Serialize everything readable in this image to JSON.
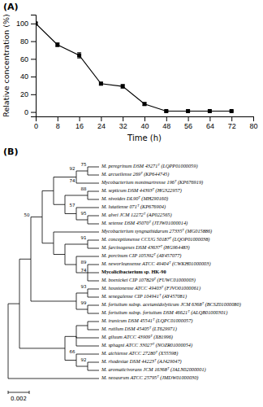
{
  "chart_data": [
    {
      "type": "line",
      "title": "(A)",
      "x": [
        0,
        8,
        16,
        24,
        32,
        40,
        48,
        56,
        64,
        72
      ],
      "values": [
        100,
        76,
        64,
        32,
        29,
        9,
        1,
        1,
        1,
        1
      ],
      "yerr": [
        1.5,
        2,
        3,
        1.5,
        2,
        1.5,
        1,
        0.5,
        0.5,
        0.5
      ],
      "xlabel": "Time (h)",
      "ylabel": "Relative concentration (%)",
      "xlim": [
        0,
        80
      ],
      "ylim": [
        -5,
        110
      ],
      "xticks": [
        0,
        8,
        16,
        24,
        32,
        40,
        48,
        56,
        64,
        72,
        80
      ],
      "yticks": [
        0,
        20,
        40,
        60,
        80,
        100
      ],
      "color": "black",
      "marker": "square",
      "line_style": "solid"
    },
    {
      "type": "tree",
      "title": "(B)",
      "scale_bar_label": "0.002",
      "root": {
        "children": [
          {
            "children": [
              {
                "children": [
                  {
                    "support": 50,
                    "children": [
                      {
                        "children": [
                          {
                            "children": [
                              {
                                "support": 92,
                                "children": [
                                  {
                                    "name": "M. peregrinum DSM 43271ᵀ (LQPP01000059)",
                                    "bold": false,
                                    "support": 75
                                  },
                                  {
                                    "name": "M. arcueilense 269ᵀ (KP644745)",
                                    "bold": false
                                  }
                                ]
                              },
                              {
                                "name": "Mycobacterium montmartrense 196ᵀ (KP676919)",
                                "bold": false,
                                "support": 74
                              }
                            ]
                          },
                          {
                            "children": [
                              {
                                "children": [
                                  {
                                    "name": "M. septicum DSM 44393ᵀ (HG322957)",
                                    "bold": false,
                                    "support": 88
                                  },
                                  {
                                    "name": "M. nivoides DL90ᵀ (MH290160)",
                                    "bold": false
                                  }
                                ]
                              },
                              {
                                "children": [
                                  {
                                    "name": "M. lutatiense 071ᵀ (KP676904)",
                                    "bold": false,
                                    "support": 57
                                  },
                                  {
                                    "children": [
                                      {
                                        "name": "M. alvei JCM 12272ᵀ (AP022565)",
                                        "bold": false,
                                        "support": 95
                                      },
                                      {
                                        "name": "M. setense DSM 45070ᵀ (JTJW01000014)",
                                        "bold": false
                                      }
                                    ]
                                  }
                                ]
                              }
                            ]
                          }
                        ]
                      },
                      {
                        "children": [
                          {
                            "name": "Mycobacterium syngnathidarum 27335ᵀ (MG015886)",
                            "bold": false
                          },
                          {
                            "children": [
                              {
                                "children": [
                                  {
                                    "name": "M. conceptionense CCUG 50187ᵀ (LQOP01000038)",
                                    "bold": false,
                                    "support": 91
                                  },
                                  {
                                    "name": "M. farcinogenes DSM 43637ᵀ (HG964483)",
                                    "bold": false
                                  }
                                ]
                              },
                              {
                                "children": [
                                  {
                                    "name": "M. porcinum CIP 105392ᵀ (AY457077)",
                                    "bold": false
                                  },
                                  {
                                    "children": [
                                      {
                                        "name": "M. neworleansense ATCC 49404ᵀ (CWKH01000003)",
                                        "bold": false,
                                        "support": 89
                                      },
                                      {
                                        "name": "Mycolicibacterium sp. HK-90",
                                        "bold": true,
                                        "support": 74
                                      },
                                      {
                                        "name": "M. boenickei CIP 107829ᵀ (FUWC01000003)",
                                        "bold": false
                                      }
                                    ]
                                  }
                                ]
                              }
                            ]
                          }
                        ]
                      }
                    ]
                  },
                  {
                    "children": [
                      {
                        "children": [
                          {
                            "name": "M. houstonense ATCC 49403ᵀ (FJVO01000061)",
                            "bold": false,
                            "support": 93
                          },
                          {
                            "name": "M. senegalense CIP 104941ᵀ (AY457081)",
                            "bold": false
                          }
                        ]
                      },
                      {
                        "children": [
                          {
                            "name": "M. fortuitum subsp. acetamidolyticum JCM 6368ᵀ (BCSZ01000080)",
                            "bold": false,
                            "support": 99
                          },
                          {
                            "name": "M. fortuitum subsp. fortuitum DSM 46621ᵀ (ALQB01000301)",
                            "bold": false
                          }
                        ]
                      }
                    ]
                  }
                ]
              },
              {
                "children": [
                  {
                    "children": [
                      {
                        "children": [
                          {
                            "name": "M. iranicum DSM 45541ᵀ (LQPC01000057)",
                            "bold": false
                          },
                          {
                            "name": "M. rutilum DSM 45405ᵀ (LT629971)",
                            "bold": false
                          }
                        ]
                      },
                      {
                        "name": "M. giluum ATCC 43909ᵀ (X81996)",
                        "bold": false
                      },
                      {
                        "name": "M. sphagni ATCC 33027ᵀ (NOZR01000054)",
                        "bold": false
                      }
                    ]
                  },
                  {
                    "children": [
                      {
                        "name": "M. aichiense ATCC 27280ᵀ (X55598)",
                        "bold": false,
                        "support": 66
                      },
                      {
                        "children": [
                          {
                            "name": "M. rhodesiae DSM 44223ᵀ (AJ429047)",
                            "bold": false,
                            "support": 92
                          },
                          {
                            "name": "M. aromaticivorans JCM 16368ᵀ (JALN02000001)",
                            "bold": false
                          }
                        ]
                      }
                    ]
                  }
                ]
              }
            ]
          },
          {
            "name": "M. neoaurum ATCC 25795ᵀ (JMDW01000030)",
            "bold": false
          }
        ]
      }
    }
  ]
}
